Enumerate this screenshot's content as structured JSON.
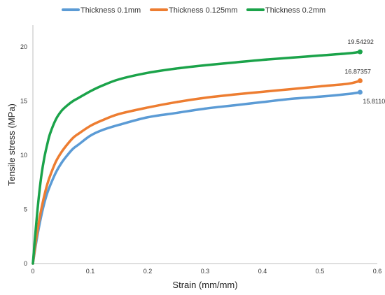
{
  "chart_data": {
    "type": "line",
    "title": "",
    "xlabel": "Strain (mm/mm)",
    "ylabel": "Tensile stress (MPa)",
    "xlim": [
      0,
      0.6
    ],
    "ylim": [
      0,
      22
    ],
    "x_ticks": [
      0,
      0.1,
      0.2,
      0.3,
      0.4,
      0.5,
      0.6
    ],
    "x_tick_labels": [
      "0",
      "0.1",
      "0.2",
      "0.3",
      "0.4",
      "0.5",
      "0.6"
    ],
    "y_ticks": [
      0,
      5,
      10,
      15,
      20
    ],
    "y_tick_labels": [
      "0",
      "5",
      "10",
      "15",
      "20"
    ],
    "grid": false,
    "legend_position": "top",
    "series": [
      {
        "name": "Thickness 0.1mm",
        "color": "#5B9BD5",
        "end_label": "15.81103",
        "x": [
          0,
          0.005,
          0.01,
          0.015,
          0.02,
          0.025,
          0.03,
          0.04,
          0.05,
          0.06,
          0.07,
          0.08,
          0.1,
          0.12,
          0.15,
          0.2,
          0.25,
          0.3,
          0.35,
          0.4,
          0.45,
          0.5,
          0.55,
          0.57
        ],
        "y": [
          0,
          1.7,
          3.2,
          4.5,
          5.6,
          6.5,
          7.2,
          8.4,
          9.3,
          10.0,
          10.6,
          11.0,
          11.8,
          12.3,
          12.8,
          13.5,
          13.9,
          14.3,
          14.6,
          14.9,
          15.2,
          15.4,
          15.65,
          15.81
        ]
      },
      {
        "name": "Thickness 0.125mm",
        "color": "#ED7D31",
        "end_label": "16.87357",
        "x": [
          0,
          0.005,
          0.01,
          0.015,
          0.02,
          0.025,
          0.03,
          0.04,
          0.05,
          0.06,
          0.07,
          0.08,
          0.1,
          0.12,
          0.15,
          0.2,
          0.25,
          0.3,
          0.35,
          0.4,
          0.45,
          0.5,
          0.55,
          0.57
        ],
        "y": [
          0,
          2.0,
          3.7,
          5.1,
          6.3,
          7.3,
          8.1,
          9.4,
          10.3,
          11.0,
          11.6,
          12.0,
          12.7,
          13.2,
          13.8,
          14.4,
          14.9,
          15.3,
          15.6,
          15.85,
          16.1,
          16.35,
          16.6,
          16.87
        ]
      },
      {
        "name": "Thickness 0.2mm",
        "color": "#1BA34A",
        "end_label": "19.54292",
        "x": [
          0,
          0.005,
          0.01,
          0.015,
          0.02,
          0.025,
          0.03,
          0.04,
          0.05,
          0.06,
          0.07,
          0.08,
          0.1,
          0.12,
          0.15,
          0.2,
          0.25,
          0.3,
          0.35,
          0.4,
          0.45,
          0.5,
          0.55,
          0.57
        ],
        "y": [
          0,
          3.2,
          6.0,
          8.2,
          9.8,
          11.0,
          12.0,
          13.3,
          14.1,
          14.6,
          15.0,
          15.3,
          15.9,
          16.4,
          17.0,
          17.6,
          18.0,
          18.3,
          18.55,
          18.8,
          19.0,
          19.2,
          19.4,
          19.54
        ]
      }
    ]
  }
}
